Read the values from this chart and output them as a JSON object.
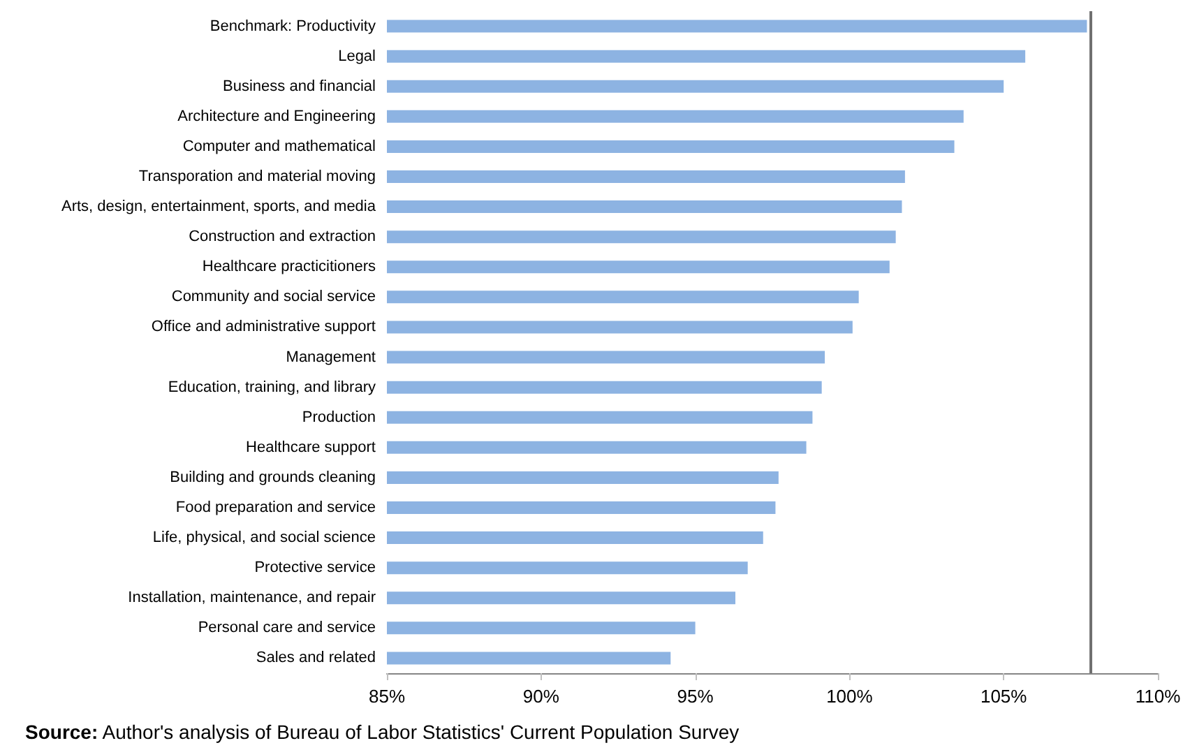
{
  "chart_data": {
    "type": "bar",
    "orientation": "horizontal",
    "categories": [
      "Benchmark: Productivity",
      "Legal",
      "Business and financial",
      "Architecture and Engineering",
      "Computer and mathematical",
      "Transporation and material moving",
      "Arts, design, entertainment, sports, and media",
      "Construction and extraction",
      "Healthcare practicitioners",
      "Community and social service",
      "Office and administrative support",
      "Management",
      "Education, training, and library",
      "Production",
      "Healthcare support",
      "Building and grounds cleaning",
      "Food preparation and service",
      "Life, physical, and social science",
      "Protective service",
      "Installation, maintenance, and repair",
      "Personal care and service",
      "Sales and related"
    ],
    "values": [
      107.7,
      105.7,
      105.0,
      103.7,
      103.4,
      101.8,
      101.7,
      101.5,
      101.3,
      100.3,
      100.1,
      99.2,
      99.1,
      98.8,
      98.6,
      97.7,
      97.6,
      97.2,
      96.7,
      96.3,
      95.0,
      94.2
    ],
    "color": "#8db3e2",
    "xlim": [
      85,
      110
    ],
    "xticks": [
      {
        "value": 85,
        "label": "85%"
      },
      {
        "value": 90,
        "label": "90%"
      },
      {
        "value": 95,
        "label": "95%"
      },
      {
        "value": 100,
        "label": "100%"
      },
      {
        "value": 105,
        "label": "105%"
      },
      {
        "value": 110,
        "label": "110%"
      }
    ],
    "ref_lines": [
      {
        "axis": "x",
        "value": 107.8,
        "color": "#707070"
      }
    ],
    "grid": false,
    "annotations": [
      "Source: Author's analysis of Bureau of Labor Statistics' Current Population Survey"
    ]
  }
}
